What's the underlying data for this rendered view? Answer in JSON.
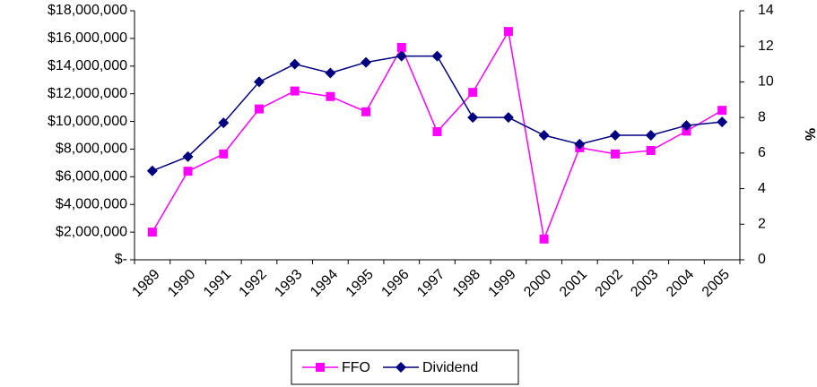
{
  "chart_data": {
    "type": "line",
    "categories": [
      "1989",
      "1990",
      "1991",
      "1992",
      "1993",
      "1994",
      "1995",
      "1996",
      "1997",
      "1998",
      "1999",
      "2000",
      "2001",
      "2002",
      "2003",
      "2004",
      "2005"
    ],
    "series": [
      {
        "name": "FFO",
        "color": "#ff00ff",
        "marker": "square",
        "values": [
          2000000,
          6400000,
          7650000,
          10900000,
          12200000,
          11800000,
          10700000,
          15350000,
          9260000,
          12100000,
          16500000,
          1500000,
          8100000,
          7650000,
          7900000,
          9300000,
          10800000
        ]
      },
      {
        "name": "Dividend",
        "color": "#000080",
        "marker": "diamond",
        "axis": "y2",
        "values": [
          5.0,
          5.8,
          7.7,
          10.0,
          11.0,
          10.5,
          11.1,
          11.45,
          11.45,
          8.0,
          8.0,
          7.0,
          6.5,
          7.0,
          7.0,
          7.55,
          7.75
        ]
      }
    ],
    "ylim": [
      0,
      18000000
    ],
    "yticks": [
      {
        "value": 0,
        "label": "$-"
      },
      {
        "value": 2000000,
        "label": "$2,000,000"
      },
      {
        "value": 4000000,
        "label": "$4,000,000"
      },
      {
        "value": 6000000,
        "label": "$6,000,000"
      },
      {
        "value": 8000000,
        "label": "$8,000,000"
      },
      {
        "value": 10000000,
        "label": "$10,000,000"
      },
      {
        "value": 12000000,
        "label": "$12,000,000"
      },
      {
        "value": 14000000,
        "label": "$14,000,000"
      },
      {
        "value": 16000000,
        "label": "$16,000,000"
      },
      {
        "value": 18000000,
        "label": "$18,000,000"
      }
    ],
    "y2label": "%",
    "y2lim": [
      0,
      14
    ],
    "y2ticks": [
      0,
      2,
      4,
      6,
      8,
      10,
      12,
      14
    ],
    "legend": "bottom"
  }
}
